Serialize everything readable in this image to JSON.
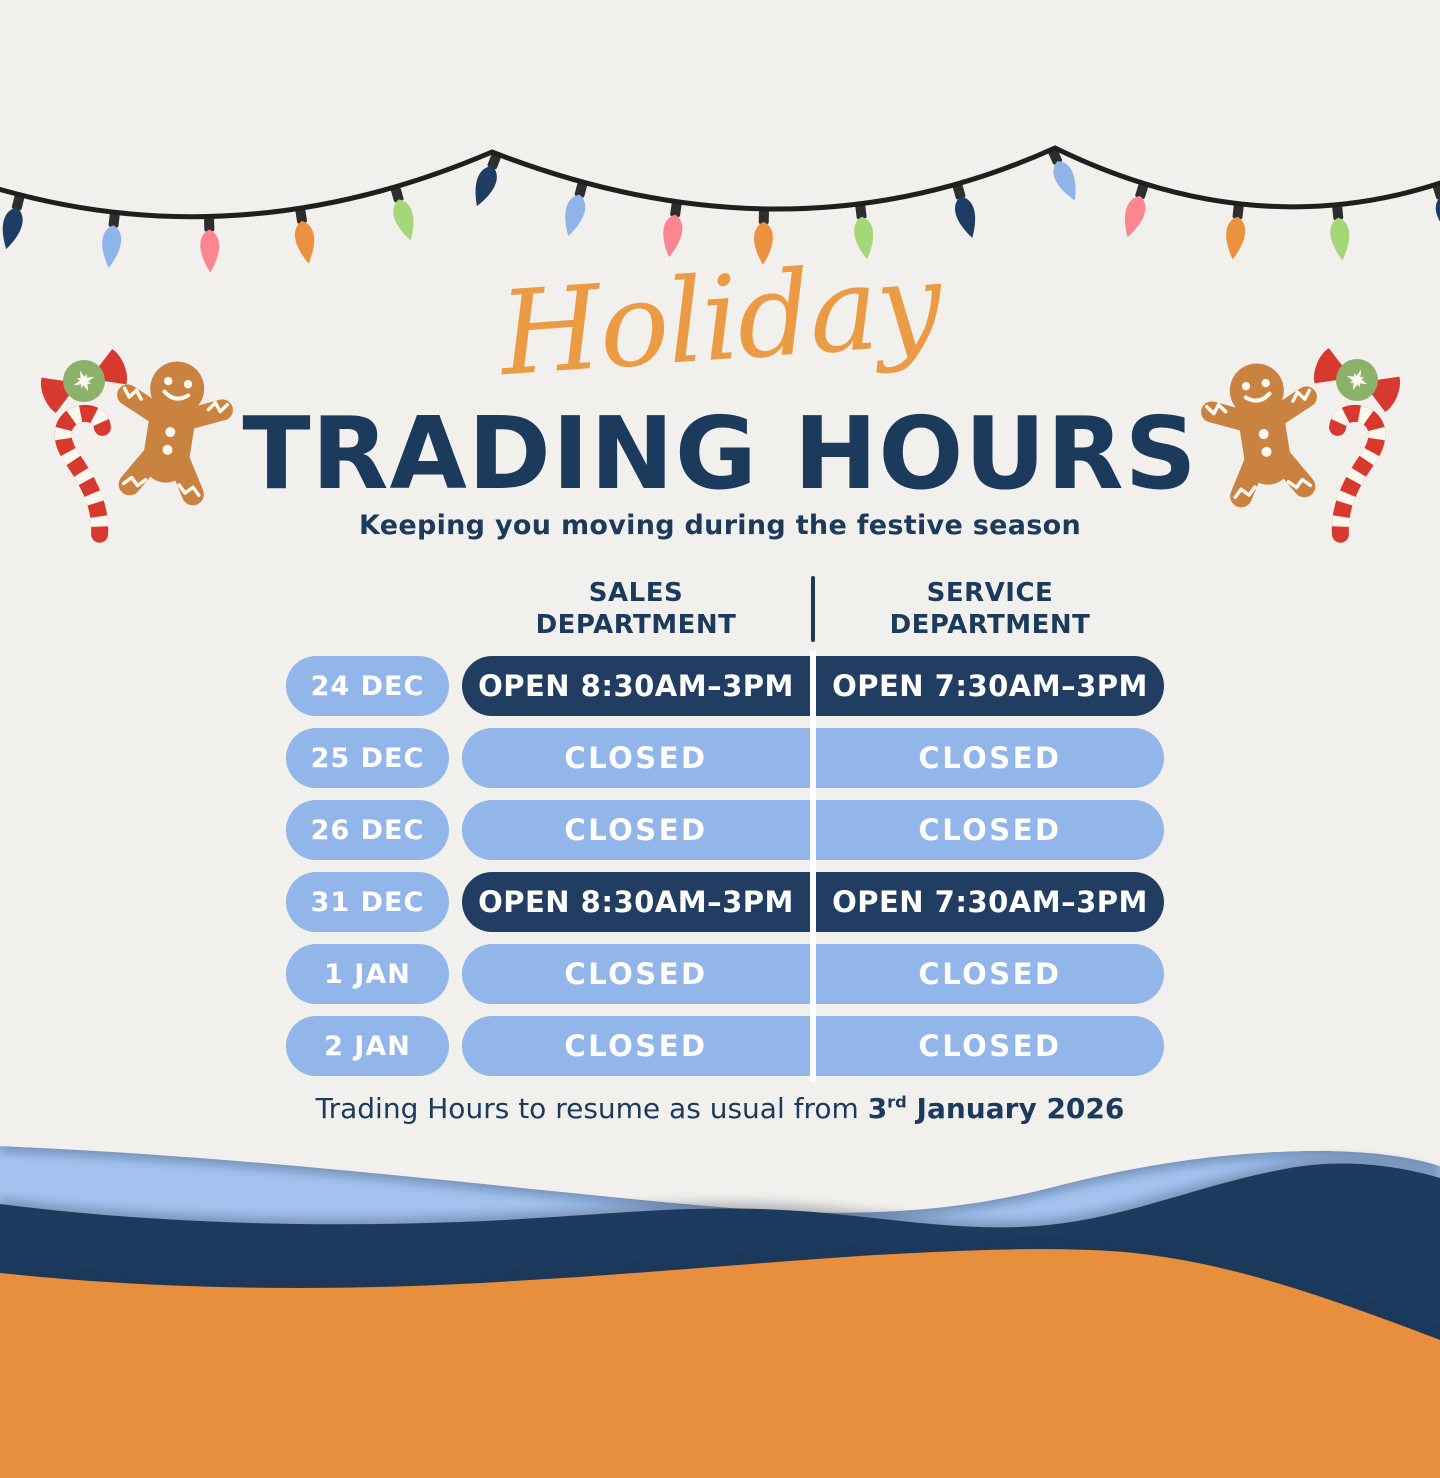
{
  "colors": {
    "cream": "#f2f0ec",
    "navy": "#1b3a5c",
    "pill_navy": "#213e62",
    "pill_blue": "#93b6ea",
    "wave_blue": "#a4c2ef",
    "wave_navy": "#1d3a5e",
    "wave_orange": "#e78f3d",
    "script_orange": "#ec9b45",
    "candy_red": "#d8392e",
    "candy_green": "#8cb169",
    "ginger_brown": "#c9823f",
    "icing_white": "#fdf8ef",
    "wire_dark": "#1f1f1f"
  },
  "header": {
    "script_title": "Holiday",
    "main_title": "TRADING HOURS",
    "subtitle": "Keeping you moving during the festive season"
  },
  "garland": {
    "bulb_colors": [
      "#1f3d63",
      "#8fb4e9",
      "#fb8591",
      "#ec9140",
      "#a5d677",
      "#1f3d63",
      "#8fb4e9",
      "#fb8591",
      "#ec9140",
      "#a5d677",
      "#1f3d63",
      "#8fb4e9",
      "#fb8591",
      "#ec9140",
      "#a5d677",
      "#1f3d63"
    ]
  },
  "table": {
    "columns": [
      {
        "label": "SALES\nDEPARTMENT"
      },
      {
        "label": "SERVICE\nDEPARTMENT"
      }
    ],
    "rows": [
      {
        "date": "24 DEC",
        "sales": "OPEN 8:30AM–3PM",
        "service": "OPEN 7:30AM–3PM"
      },
      {
        "date": "25 DEC",
        "sales": "CLOSED",
        "service": "CLOSED"
      },
      {
        "date": "26 DEC",
        "sales": "CLOSED",
        "service": "CLOSED"
      },
      {
        "date": "31 DEC",
        "sales": "OPEN 8:30AM–3PM",
        "service": "OPEN 7:30AM–3PM"
      },
      {
        "date": "1 JAN",
        "sales": "CLOSED",
        "service": "CLOSED"
      },
      {
        "date": "2 JAN",
        "sales": "CLOSED",
        "service": "CLOSED"
      }
    ]
  },
  "note": {
    "prefix": "Trading Hours to resume as usual from ",
    "bold_start": "3",
    "sup": "rd",
    "bold_rest": " January 2026"
  }
}
